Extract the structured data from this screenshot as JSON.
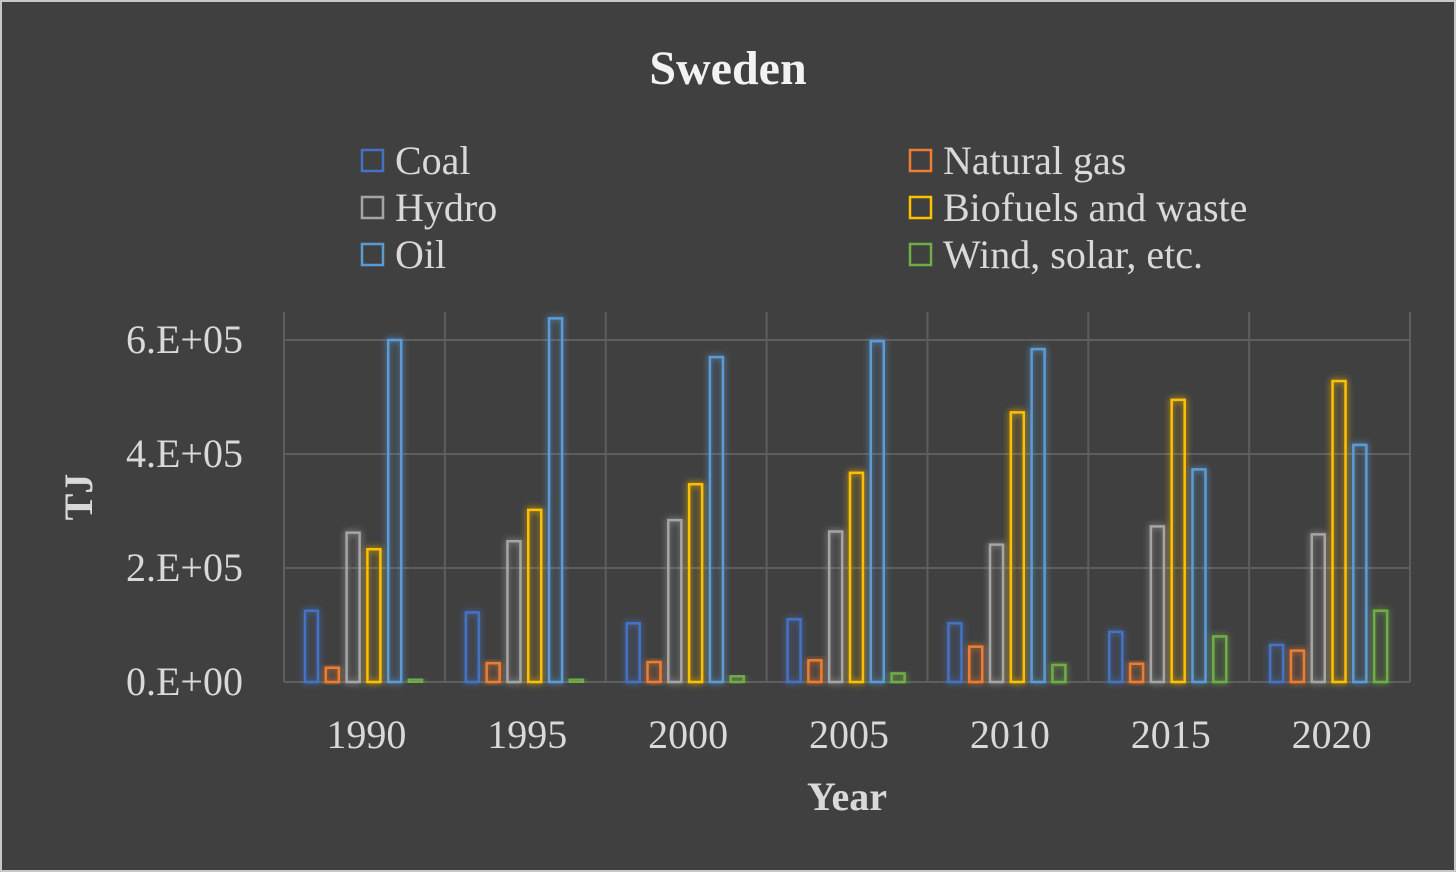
{
  "chart_data": {
    "type": "bar",
    "title": "Sweden",
    "xlabel": "Year",
    "ylabel": "TJ",
    "categories": [
      "1990",
      "1995",
      "2000",
      "2005",
      "2010",
      "2015",
      "2020"
    ],
    "ylim": [
      0,
      650000
    ],
    "yticks": [
      0,
      200000,
      400000,
      600000
    ],
    "ytick_labels": [
      "0.E+00",
      "2.E+05",
      "4.E+05",
      "6.E+05"
    ],
    "grid": true,
    "legend_position": "top",
    "series": [
      {
        "name": "Coal",
        "color": "#4472c4",
        "values": [
          125000,
          122000,
          103000,
          110000,
          103000,
          88000,
          65000
        ]
      },
      {
        "name": "Natural gas",
        "color": "#ed7d31",
        "values": [
          25000,
          33000,
          35000,
          38000,
          62000,
          32000,
          55000
        ]
      },
      {
        "name": "Hydro",
        "color": "#a5a5a5",
        "values": [
          262000,
          247000,
          284000,
          264000,
          241000,
          273000,
          259000
        ]
      },
      {
        "name": "Biofuels and waste",
        "color": "#ffc000",
        "values": [
          233000,
          302000,
          347000,
          367000,
          473000,
          495000,
          528000
        ]
      },
      {
        "name": "Oil",
        "color": "#5b9bd5",
        "values": [
          600000,
          638000,
          570000,
          598000,
          584000,
          373000,
          416000
        ]
      },
      {
        "name": "Wind, solar, etc.",
        "color": "#70ad47",
        "values": [
          5000,
          5000,
          10000,
          15000,
          30000,
          80000,
          125000
        ]
      }
    ]
  }
}
